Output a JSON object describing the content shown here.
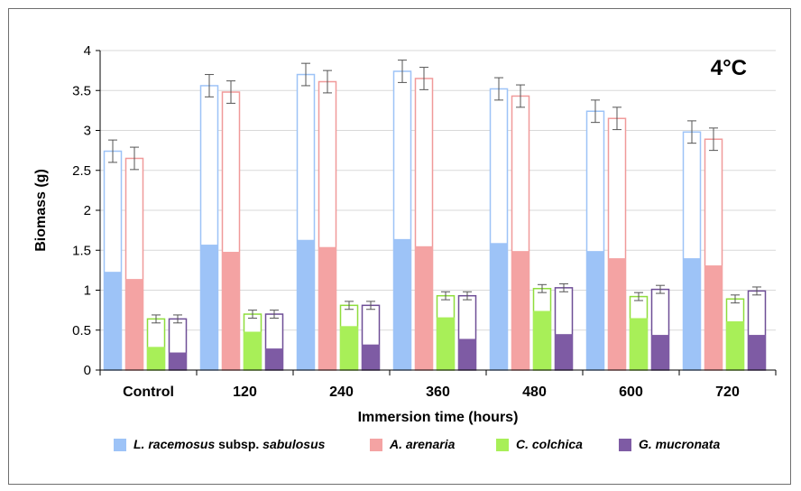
{
  "chart_data": {
    "type": "bar",
    "annotation": "4°C",
    "xlabel": "Immersion time (hours)",
    "ylabel": "Biomass (g)",
    "ylim": [
      0,
      4
    ],
    "yticks": [
      "0",
      "0.5",
      "1",
      "1.5",
      "2",
      "2.5",
      "3",
      "3.5",
      "4"
    ],
    "grid": true,
    "legend_position": "bottom",
    "categories": [
      "Control",
      "120",
      "240",
      "360",
      "480",
      "600",
      "720"
    ],
    "series": [
      {
        "legend_parts": [
          {
            "text": "L. racemosus",
            "italic": true
          },
          {
            "text": " subsp. ",
            "italic": false
          },
          {
            "text": "sabulosus",
            "italic": true
          }
        ],
        "color": "#9dc3f7",
        "outline": "#9dc3f7",
        "filled": [
          1.23,
          1.57,
          1.63,
          1.64,
          1.59,
          1.49,
          1.4
        ],
        "total": [
          2.74,
          3.56,
          3.7,
          3.74,
          3.52,
          3.24,
          2.98
        ],
        "error": [
          0.14,
          0.14,
          0.14,
          0.14,
          0.14,
          0.14,
          0.14
        ]
      },
      {
        "legend_parts": [
          {
            "text": "A. arenaria",
            "italic": true
          }
        ],
        "color": "#f4a3a3",
        "outline": "#f09a9a",
        "filled": [
          1.14,
          1.48,
          1.54,
          1.55,
          1.49,
          1.4,
          1.31
        ],
        "total": [
          2.65,
          3.48,
          3.61,
          3.65,
          3.43,
          3.15,
          2.89
        ],
        "error": [
          0.14,
          0.14,
          0.14,
          0.14,
          0.14,
          0.14,
          0.14
        ]
      },
      {
        "legend_parts": [
          {
            "text": "C. colchica",
            "italic": true
          }
        ],
        "color": "#a8ef58",
        "outline": "#8fdd3c",
        "filled": [
          0.29,
          0.48,
          0.55,
          0.66,
          0.74,
          0.65,
          0.61
        ],
        "total": [
          0.64,
          0.7,
          0.81,
          0.93,
          1.02,
          0.92,
          0.89
        ],
        "error": [
          0.05,
          0.05,
          0.05,
          0.05,
          0.05,
          0.05,
          0.05
        ]
      },
      {
        "legend_parts": [
          {
            "text": "G. mucronata",
            "italic": true
          }
        ],
        "color": "#7e5ba4",
        "outline": "#6e4e96",
        "filled": [
          0.22,
          0.27,
          0.32,
          0.39,
          0.45,
          0.44,
          0.44
        ],
        "total": [
          0.64,
          0.7,
          0.81,
          0.93,
          1.03,
          1.01,
          0.99
        ],
        "error": [
          0.05,
          0.05,
          0.05,
          0.05,
          0.05,
          0.05,
          0.05
        ]
      }
    ]
  }
}
